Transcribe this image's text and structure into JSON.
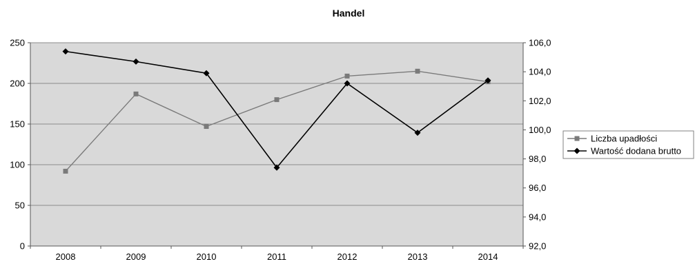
{
  "chart_data": {
    "type": "line",
    "title": "Handel",
    "categories": [
      "2008",
      "2009",
      "2010",
      "2011",
      "2012",
      "2013",
      "2014"
    ],
    "y_left": {
      "min": 0,
      "max": 250,
      "ticks": [
        "0",
        "50",
        "100",
        "150",
        "200",
        "250"
      ]
    },
    "y_right": {
      "min": 92,
      "max": 106,
      "ticks": [
        "92,0",
        "94,0",
        "96,0",
        "98,0",
        "100,0",
        "102,0",
        "104,0",
        "106,0"
      ]
    },
    "series": [
      {
        "name": "Liczba upadłości",
        "axis": "left",
        "marker": "square",
        "color": "#7a7a7a",
        "values": [
          92,
          187,
          147,
          180,
          209,
          215,
          202
        ]
      },
      {
        "name": "Wartość dodana brutto",
        "axis": "right",
        "marker": "diamond",
        "color": "#000000",
        "values": [
          105.4,
          104.7,
          103.9,
          97.4,
          103.2,
          99.8,
          103.4
        ]
      }
    ],
    "grid": "horizontal",
    "legend_position": "right",
    "plot_background": "#d9d9d9"
  }
}
